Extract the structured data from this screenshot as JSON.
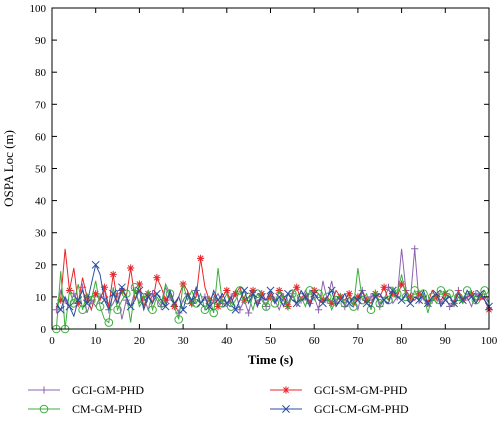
{
  "chart_data": {
    "type": "line",
    "title": "",
    "xlabel": "Time (s)",
    "ylabel": "OSPA Loc (m)",
    "xlim": [
      0,
      100
    ],
    "ylim": [
      0,
      100
    ],
    "x_ticks": [
      0,
      10,
      20,
      30,
      40,
      50,
      60,
      70,
      80,
      90,
      100
    ],
    "y_ticks": [
      0,
      10,
      20,
      30,
      40,
      50,
      60,
      70,
      80,
      90,
      100
    ],
    "x": [
      1,
      2,
      3,
      4,
      5,
      6,
      7,
      8,
      9,
      10,
      11,
      12,
      13,
      14,
      15,
      16,
      17,
      18,
      19,
      20,
      21,
      22,
      23,
      24,
      25,
      26,
      27,
      28,
      29,
      30,
      31,
      32,
      33,
      34,
      35,
      36,
      37,
      38,
      39,
      40,
      41,
      42,
      43,
      44,
      45,
      46,
      47,
      48,
      49,
      50,
      51,
      52,
      53,
      54,
      55,
      56,
      57,
      58,
      59,
      60,
      61,
      62,
      63,
      64,
      65,
      66,
      67,
      68,
      69,
      70,
      71,
      72,
      73,
      74,
      75,
      76,
      77,
      78,
      79,
      80,
      81,
      82,
      83,
      84,
      85,
      86,
      87,
      88,
      89,
      90,
      91,
      92,
      93,
      94,
      95,
      96,
      97,
      98,
      99,
      100
    ],
    "grid": false,
    "legend_position": "bottom",
    "series": [
      {
        "name": "GCI-GM-PHD",
        "color": "#8e63b0",
        "marker": "plus",
        "values": [
          6,
          12,
          9,
          7,
          11,
          8,
          13,
          5,
          9,
          7,
          10,
          12,
          6,
          8,
          11,
          3,
          9,
          7,
          12,
          8,
          10,
          6,
          11,
          9,
          7,
          13,
          10,
          8,
          5,
          9,
          11,
          7,
          12,
          8,
          10,
          6,
          9,
          11,
          8,
          7,
          10,
          12,
          6,
          9,
          5,
          11,
          8,
          10,
          7,
          12,
          9,
          6,
          10,
          8,
          11,
          7,
          9,
          12,
          8,
          10,
          6,
          15,
          9,
          15,
          8,
          11,
          7,
          10,
          9,
          6,
          12,
          8,
          10,
          11,
          7,
          9,
          13,
          8,
          10,
          25,
          12,
          9,
          25,
          8,
          10,
          7,
          9,
          11,
          8,
          10,
          7,
          9,
          12,
          8,
          10,
          7,
          11,
          9,
          10,
          8
        ]
      },
      {
        "name": "GCI-SM-GM-PHD",
        "color": "#e8262a",
        "marker": "asterisk",
        "values": [
          7,
          9,
          25,
          12,
          19,
          8,
          16,
          10,
          6,
          11,
          9,
          13,
          7,
          17,
          8,
          12,
          10,
          19,
          9,
          14,
          7,
          11,
          8,
          16,
          13,
          9,
          11,
          7,
          10,
          14,
          12,
          8,
          10,
          22,
          13,
          9,
          11,
          7,
          10,
          12,
          8,
          11,
          13,
          9,
          10,
          12,
          7,
          11,
          9,
          10,
          8,
          12,
          10,
          7,
          11,
          13,
          9,
          10,
          8,
          12,
          11,
          9,
          10,
          8,
          12,
          10,
          9,
          11,
          7,
          10,
          12,
          9,
          8,
          11,
          10,
          13,
          9,
          11,
          10,
          14,
          12,
          10,
          9,
          11,
          10,
          8,
          12,
          10,
          9,
          11,
          10,
          8,
          12,
          9,
          10,
          11,
          8,
          10,
          9,
          6
        ]
      },
      {
        "name": "CM-GM-PHD",
        "color": "#3cae3c",
        "marker": "circle",
        "values": [
          0,
          18,
          0,
          12,
          8,
          14,
          6,
          11,
          9,
          15,
          7,
          3,
          2,
          13,
          6,
          9,
          11,
          2,
          13,
          7,
          9,
          12,
          6,
          10,
          8,
          14,
          11,
          7,
          3,
          14,
          9,
          12,
          8,
          11,
          6,
          10,
          5,
          19,
          8,
          11,
          7,
          9,
          12,
          8,
          10,
          6,
          11,
          9,
          7,
          10,
          8,
          12,
          9,
          6,
          11,
          8,
          10,
          7,
          12,
          9,
          11,
          8,
          10,
          6,
          9,
          11,
          8,
          10,
          7,
          19,
          9,
          11,
          6,
          12,
          8,
          10,
          9,
          13,
          11,
          17,
          10,
          8,
          12,
          9,
          11,
          5,
          10,
          8,
          12,
          9,
          11,
          7,
          10,
          8,
          12,
          11,
          9,
          10,
          12,
          8
        ]
      },
      {
        "name": "GCI-CM-GM-PHD",
        "color": "#2b4fa0",
        "marker": "cross",
        "values": [
          8,
          6,
          10,
          7,
          4,
          9,
          12,
          8,
          14,
          20,
          17,
          9,
          6,
          11,
          8,
          13,
          10,
          7,
          9,
          12,
          6,
          10,
          8,
          11,
          9,
          7,
          12,
          8,
          10,
          6,
          11,
          9,
          13,
          8,
          10,
          7,
          12,
          9,
          11,
          8,
          10,
          6,
          9,
          12,
          8,
          11,
          7,
          10,
          9,
          12,
          8,
          10,
          7,
          11,
          9,
          8,
          12,
          10,
          7,
          11,
          9,
          8,
          10,
          12,
          7,
          9,
          11,
          8,
          10,
          9,
          12,
          8,
          7,
          10,
          11,
          9,
          8,
          12,
          10,
          9,
          11,
          8,
          10,
          9,
          12,
          8,
          10,
          11,
          7,
          9,
          10,
          8,
          11,
          9,
          12,
          10,
          8,
          11,
          9,
          7
        ]
      }
    ]
  }
}
